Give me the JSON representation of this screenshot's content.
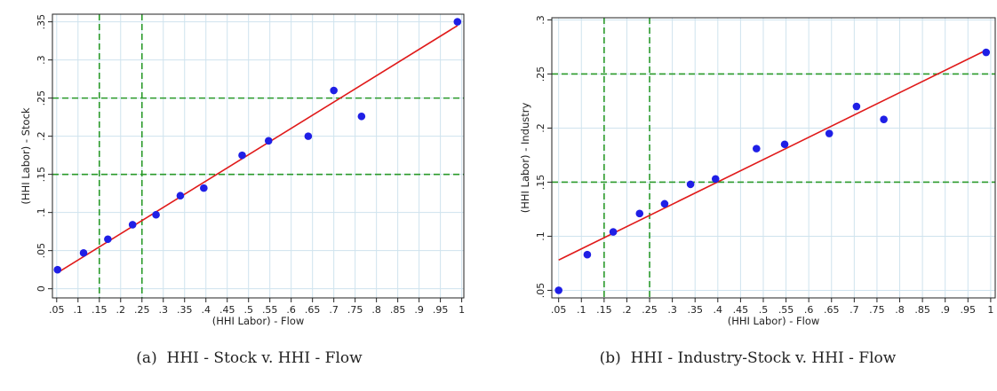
{
  "chart_data": [
    {
      "type": "scatter",
      "caption": "(a)  HHI - Stock v. HHI - Flow",
      "xlabel": "(HHI Labor) - Flow",
      "ylabel": "(HHI Labor) - Stock",
      "xlim": [
        0.04,
        1.005
      ],
      "ylim": [
        -0.012,
        0.36
      ],
      "xticks": [
        ".05",
        ".1",
        ".15",
        ".2",
        ".25",
        ".3",
        ".35",
        ".4",
        ".45",
        ".5",
        ".55",
        ".6",
        ".65",
        ".7",
        ".75",
        ".8",
        ".85",
        ".9",
        ".95",
        "1"
      ],
      "xtick_values": [
        0.05,
        0.1,
        0.15,
        0.2,
        0.25,
        0.3,
        0.35,
        0.4,
        0.45,
        0.5,
        0.55,
        0.6,
        0.65,
        0.7,
        0.75,
        0.8,
        0.85,
        0.9,
        0.95,
        1.0
      ],
      "yticks": [
        "0",
        ".05",
        ".1",
        ".15",
        ".2",
        ".25",
        ".3",
        ".35"
      ],
      "ytick_values": [
        0,
        0.05,
        0.1,
        0.15,
        0.2,
        0.25,
        0.3,
        0.35
      ],
      "grid": true,
      "points": {
        "x": [
          0.052,
          0.113,
          0.17,
          0.228,
          0.283,
          0.34,
          0.395,
          0.485,
          0.547,
          0.64,
          0.7,
          0.765,
          0.99
        ],
        "y": [
          0.025,
          0.047,
          0.065,
          0.084,
          0.097,
          0.122,
          0.132,
          0.175,
          0.194,
          0.2,
          0.26,
          0.226,
          0.35
        ]
      },
      "fit_line": {
        "x": [
          0.052,
          0.99
        ],
        "y": [
          0.021,
          0.345
        ]
      },
      "reference_lines": {
        "vertical": [
          0.15,
          0.25
        ],
        "horizontal": [
          0.15,
          0.25
        ]
      },
      "colors": {
        "points": "#1f1fe6",
        "fit": "#e01a1a",
        "reference": "#2a9a2a",
        "grid": "#cfe3ee"
      }
    },
    {
      "type": "scatter",
      "caption": "(b)  HHI - Industry-Stock v. HHI - Flow",
      "xlabel": "(HHI Labor) - Flow",
      "ylabel": "(HHI Labor) - Industry",
      "xlim": [
        0.035,
        1.01
      ],
      "ylim": [
        0.043,
        0.302
      ],
      "xticks": [
        ".05",
        ".1",
        ".15",
        ".2",
        ".25",
        ".3",
        ".35",
        ".4",
        ".45",
        ".5",
        ".55",
        ".6",
        ".65",
        ".7",
        ".75",
        ".8",
        ".85",
        ".9",
        ".95",
        "1"
      ],
      "xtick_values": [
        0.05,
        0.1,
        0.15,
        0.2,
        0.25,
        0.3,
        0.35,
        0.4,
        0.45,
        0.5,
        0.55,
        0.6,
        0.65,
        0.7,
        0.75,
        0.8,
        0.85,
        0.9,
        0.95,
        1.0
      ],
      "yticks": [
        ".05",
        ".1",
        ".15",
        ".2",
        ".25",
        ".3"
      ],
      "ytick_values": [
        0.05,
        0.1,
        0.15,
        0.2,
        0.25,
        0.3
      ],
      "grid": true,
      "points": {
        "x": [
          0.05,
          0.113,
          0.17,
          0.228,
          0.283,
          0.34,
          0.395,
          0.485,
          0.547,
          0.645,
          0.705,
          0.765,
          0.99
        ],
        "y": [
          0.05,
          0.083,
          0.104,
          0.121,
          0.13,
          0.148,
          0.153,
          0.181,
          0.185,
          0.195,
          0.22,
          0.208,
          0.27
        ]
      },
      "fit_line": {
        "x": [
          0.05,
          0.99
        ],
        "y": [
          0.078,
          0.272
        ]
      },
      "reference_lines": {
        "vertical": [
          0.15,
          0.25
        ],
        "horizontal": [
          0.15,
          0.25
        ]
      },
      "colors": {
        "points": "#1f1fe6",
        "fit": "#e01a1a",
        "reference": "#2a9a2a",
        "grid": "#cfe3ee"
      }
    }
  ]
}
